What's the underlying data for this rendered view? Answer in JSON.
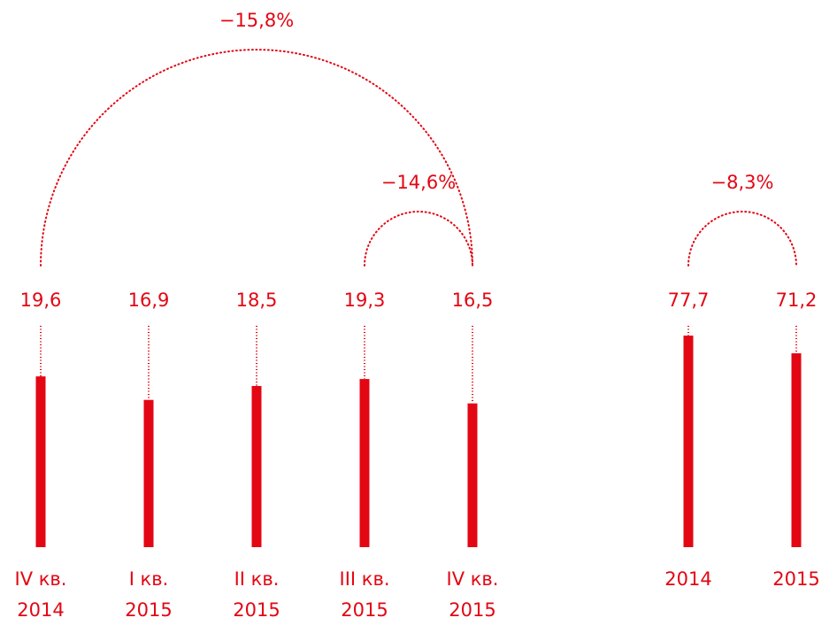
{
  "chart_data": [
    {
      "type": "bar",
      "color": "#e30613",
      "categories": [
        "IV кв. 2014",
        "I кв. 2015",
        "II кв. 2015",
        "III кв. 2015",
        "IV кв. 2015"
      ],
      "values": [
        19.6,
        16.9,
        18.5,
        19.3,
        16.5
      ],
      "value_labels": [
        "19,6",
        "16,9",
        "18,5",
        "19,3",
        "16,5"
      ],
      "ylim": [
        0,
        25
      ],
      "annotations": [
        {
          "text": "−15,8%",
          "from": 0,
          "to": 4
        },
        {
          "text": "−14,6%",
          "from": 3,
          "to": 4
        }
      ]
    },
    {
      "type": "bar",
      "color": "#e30613",
      "categories": [
        "2014",
        "2015"
      ],
      "values": [
        77.7,
        71.2
      ],
      "value_labels": [
        "77,7",
        "71,2"
      ],
      "ylim": [
        0,
        80
      ],
      "annotations": [
        {
          "text": "−8,3%",
          "from": 0,
          "to": 1
        }
      ]
    }
  ]
}
